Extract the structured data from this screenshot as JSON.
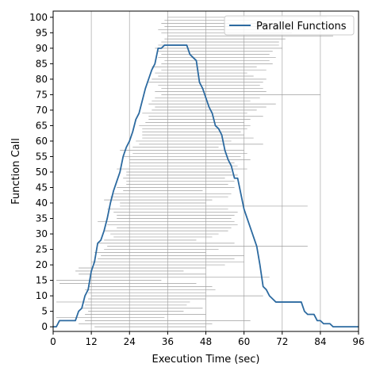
{
  "chart_data": {
    "type": "line",
    "xlabel": "Execution Time (sec)",
    "ylabel": "Function Call",
    "xlim": [
      0,
      96
    ],
    "ylim": [
      -1.5,
      102
    ],
    "xticks": [
      0,
      12,
      24,
      36,
      48,
      60,
      72,
      84,
      96
    ],
    "yticks": [
      0,
      5,
      10,
      15,
      20,
      25,
      30,
      35,
      40,
      45,
      50,
      55,
      60,
      65,
      70,
      75,
      80,
      85,
      90,
      95,
      100
    ],
    "grid": "vertical",
    "legend": "top-right",
    "colors": {
      "line": "#2c6aa0",
      "interval": "#9e9e9e",
      "grid": "#b0b0b0"
    },
    "series": [
      {
        "name": "Parallel Functions",
        "x": [
          0,
          1,
          2,
          7,
          8,
          9,
          10,
          11,
          12,
          13,
          14,
          15,
          16,
          17,
          18,
          19,
          20,
          21,
          22,
          23,
          24,
          25,
          26,
          27,
          28,
          29,
          30,
          31,
          32,
          33,
          34,
          35,
          36,
          38,
          40,
          42,
          43,
          44,
          45,
          46,
          47,
          48,
          49,
          50,
          51,
          52,
          53,
          54,
          55,
          56,
          57,
          58,
          59,
          60,
          61,
          62,
          63,
          64,
          65,
          66,
          67,
          68,
          69,
          70,
          71,
          72,
          74,
          76,
          78,
          79,
          80,
          81,
          82,
          83,
          84,
          85,
          86,
          87,
          88,
          89,
          90,
          92,
          94,
          96
        ],
        "y": [
          0,
          0,
          2,
          2,
          5,
          6,
          10,
          12,
          18,
          21,
          27,
          28,
          31,
          35,
          40,
          44,
          47,
          50,
          55,
          58,
          60,
          63,
          67,
          69,
          73,
          77,
          80,
          83,
          85,
          90,
          90,
          91,
          91,
          91,
          91,
          91,
          88,
          87,
          86,
          79,
          77,
          74,
          71,
          69,
          65,
          64,
          62,
          57,
          54,
          52,
          48,
          48,
          43,
          38,
          35,
          32,
          29,
          26,
          20,
          13,
          12,
          10,
          9,
          8,
          8,
          8,
          8,
          8,
          8,
          5,
          4,
          4,
          4,
          2,
          2,
          1,
          1,
          1,
          0,
          0,
          0,
          0,
          0,
          0
        ]
      }
    ],
    "intervals": [
      [
        13,
        48
      ],
      [
        8,
        50
      ],
      [
        10,
        62
      ],
      [
        1,
        35
      ],
      [
        10,
        48
      ],
      [
        11,
        41
      ],
      [
        9,
        47
      ],
      [
        10,
        42
      ],
      [
        1,
        43
      ],
      [
        11,
        48
      ],
      [
        12,
        66
      ],
      [
        11,
        48
      ],
      [
        10,
        51
      ],
      [
        11,
        50
      ],
      [
        2,
        45
      ],
      [
        1,
        34
      ],
      [
        12,
        68
      ],
      [
        8,
        48
      ],
      [
        7,
        41
      ],
      [
        8,
        48
      ],
      [
        13,
        54
      ],
      [
        12,
        60
      ],
      [
        14,
        57
      ],
      [
        15,
        60
      ],
      [
        13,
        48
      ],
      [
        16,
        52
      ],
      [
        17,
        80
      ],
      [
        14,
        57
      ],
      [
        16,
        45
      ],
      [
        19,
        50
      ],
      [
        18,
        52
      ],
      [
        16,
        55
      ],
      [
        20,
        56
      ],
      [
        17,
        58
      ],
      [
        14,
        57
      ],
      [
        20,
        56
      ],
      [
        20,
        57
      ],
      [
        19,
        58
      ],
      [
        17,
        55
      ],
      [
        21,
        80
      ],
      [
        21,
        48
      ],
      [
        16,
        50
      ],
      [
        18,
        55
      ],
      [
        19,
        56
      ],
      [
        22,
        47
      ],
      [
        20,
        57
      ],
      [
        23,
        55
      ],
      [
        23,
        57
      ],
      [
        22,
        54
      ],
      [
        23,
        58
      ],
      [
        23,
        56
      ],
      [
        20,
        61
      ],
      [
        24,
        58
      ],
      [
        24,
        57
      ],
      [
        24,
        62
      ],
      [
        22,
        59
      ],
      [
        25,
        61
      ],
      [
        21,
        60
      ],
      [
        25,
        52
      ],
      [
        27,
        66
      ],
      [
        26,
        56
      ],
      [
        28,
        63
      ],
      [
        28,
        60
      ],
      [
        28,
        59
      ],
      [
        28,
        61
      ],
      [
        27,
        62
      ],
      [
        29,
        60
      ],
      [
        30,
        62
      ],
      [
        30,
        66
      ],
      [
        28,
        61
      ],
      [
        31,
        64
      ],
      [
        32,
        67
      ],
      [
        30,
        70
      ],
      [
        31,
        62
      ],
      [
        32,
        65
      ],
      [
        34,
        84
      ],
      [
        32,
        67
      ],
      [
        34,
        66
      ],
      [
        33,
        65
      ],
      [
        30,
        66
      ],
      [
        31,
        67
      ],
      [
        33,
        63
      ],
      [
        32,
        61
      ],
      [
        34,
        67
      ],
      [
        31,
        64
      ],
      [
        34,
        69
      ],
      [
        35,
        68
      ],
      [
        33,
        70
      ],
      [
        34,
        68
      ],
      [
        33,
        69
      ],
      [
        32,
        72
      ],
      [
        33,
        71
      ],
      [
        34,
        71
      ],
      [
        35,
        73
      ],
      [
        36,
        88
      ],
      [
        34,
        75
      ],
      [
        33,
        79
      ],
      [
        35,
        72
      ],
      [
        34,
        75
      ],
      [
        35,
        77
      ],
      [
        36,
        86
      ]
    ]
  }
}
